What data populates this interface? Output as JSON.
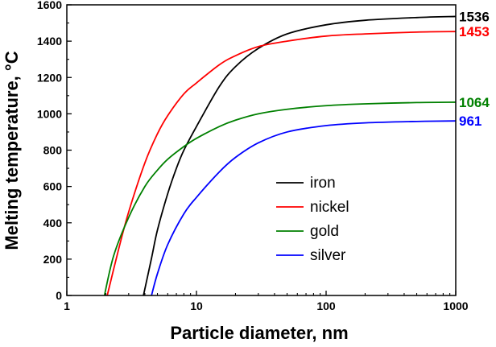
{
  "chart_data": {
    "type": "line",
    "title": "",
    "xlabel": "Particle diameter, nm",
    "ylabel": "Melting temperature, °C",
    "xscale": "log",
    "xlim": [
      1,
      1000
    ],
    "ylim": [
      0,
      1600
    ],
    "x_ticks": [
      1,
      10,
      100,
      1000
    ],
    "x_tick_labels": [
      "1",
      "10",
      "100",
      "1000"
    ],
    "y_ticks": [
      0,
      200,
      400,
      600,
      800,
      1000,
      1200,
      1400,
      1600
    ],
    "y_tick_labels": [
      "0",
      "200",
      "400",
      "600",
      "800",
      "1000",
      "1200",
      "1400",
      "1600"
    ],
    "grid": false,
    "legend_position": "center-right",
    "series": [
      {
        "name": "iron",
        "color": "#000000",
        "end_label": "1536",
        "x": [
          3.9,
          4.5,
          5,
          6,
          7,
          8,
          10,
          15,
          20,
          30,
          50,
          100,
          200,
          500,
          1000
        ],
        "y": [
          0,
          205,
          360,
          560,
          700,
          800,
          930,
          1150,
          1260,
          1360,
          1440,
          1490,
          1515,
          1530,
          1536
        ]
      },
      {
        "name": "nickel",
        "color": "#ff0000",
        "end_label": "1453",
        "x": [
          2.05,
          2.5,
          3,
          4,
          5,
          6,
          8,
          10,
          15,
          20,
          30,
          50,
          100,
          200,
          500,
          1000
        ],
        "y": [
          0,
          250,
          460,
          730,
          890,
          990,
          1110,
          1170,
          1270,
          1320,
          1370,
          1400,
          1428,
          1440,
          1450,
          1453
        ]
      },
      {
        "name": "gold",
        "color": "#008000",
        "end_label": "1064",
        "x": [
          1.95,
          2.3,
          3,
          4,
          5,
          6,
          8,
          10,
          15,
          20,
          30,
          50,
          100,
          200,
          500,
          1000
        ],
        "y": [
          0,
          220,
          430,
          600,
          690,
          750,
          820,
          865,
          930,
          965,
          1000,
          1025,
          1045,
          1055,
          1062,
          1064
        ]
      },
      {
        "name": "silver",
        "color": "#0000ff",
        "end_label": "961",
        "x": [
          4.5,
          5,
          6,
          8,
          10,
          15,
          20,
          30,
          50,
          100,
          200,
          500,
          1000
        ],
        "y": [
          0,
          120,
          280,
          450,
          540,
          680,
          760,
          840,
          900,
          935,
          950,
          958,
          961
        ]
      }
    ]
  }
}
